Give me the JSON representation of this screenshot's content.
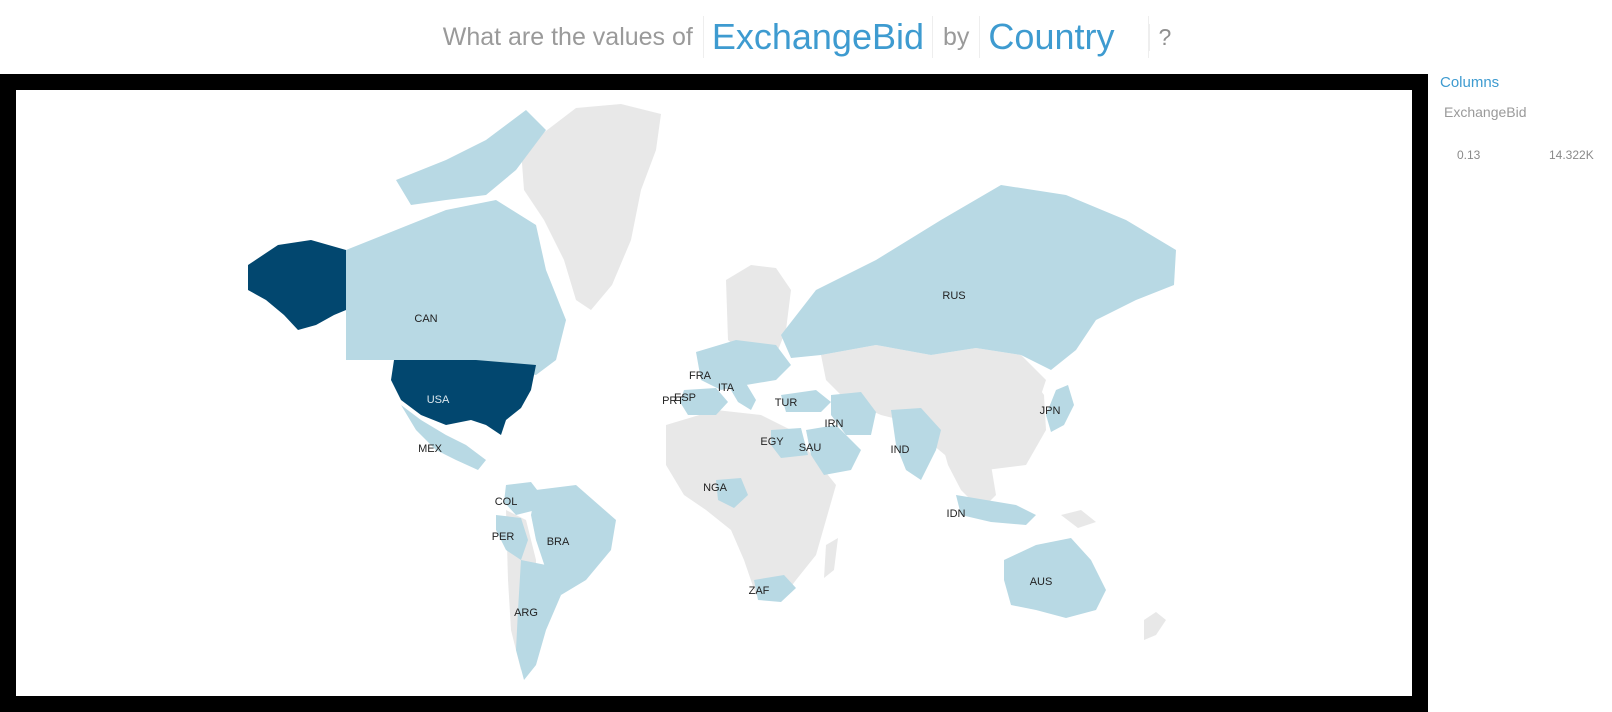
{
  "question": {
    "prefix": "What are the values of",
    "measure": "ExchangeBid",
    "by": "by",
    "dimension": "Country",
    "help": "?"
  },
  "panel": {
    "title": "Columns",
    "column": "ExchangeBid",
    "legend_min": "0.13",
    "legend_max": "14.322K"
  },
  "colors": {
    "no_data": "#e8e8e8",
    "low": "#b8d9e4",
    "high": "#02476f",
    "frame": "#000000"
  },
  "chart_data": {
    "type": "choropleth",
    "measure": "ExchangeBid",
    "dimension": "Country",
    "legend_range": [
      "0.13",
      "14.322K"
    ],
    "labels": [
      "CAN",
      "USA",
      "MEX",
      "COL",
      "PER",
      "BRA",
      "ARG",
      "FRA",
      "ESP",
      "PRT",
      "ITA",
      "TUR",
      "EGY",
      "SAU",
      "IRN",
      "IND",
      "NGA",
      "ZAF",
      "RUS",
      "JPN",
      "IDN",
      "AUS"
    ],
    "shading": {
      "high": [
        "USA"
      ],
      "low": [
        "CAN",
        "MEX",
        "COL",
        "PER",
        "BRA",
        "ARG",
        "FRA",
        "ESP",
        "PRT",
        "ITA",
        "TUR",
        "EGY",
        "SAU",
        "IRN",
        "IND",
        "NGA",
        "ZAF",
        "RUS",
        "JPN",
        "IDN",
        "AUS"
      ]
    }
  }
}
